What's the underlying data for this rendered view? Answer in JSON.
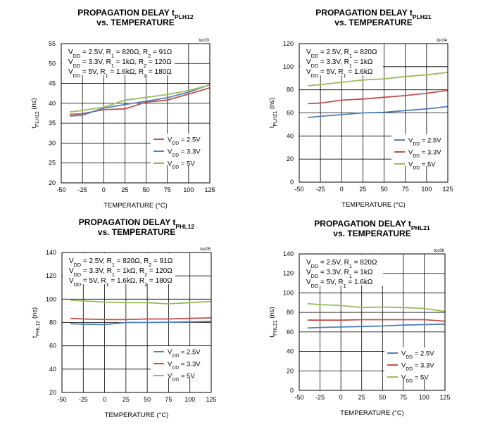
{
  "chart_data": [
    {
      "type": "line",
      "title": "PROPAGATION DELAY t",
      "title_sub": "PLH12",
      "title_line2": "vs. TEMPERATURE",
      "code": "toc03",
      "xlabel": "TEMPERATURE (°C)",
      "ylabel": "t",
      "ylabel_sub": "PLH12",
      "ylabel_unit": " (ns)",
      "xlim": [
        -50,
        125
      ],
      "ylim": [
        20,
        55
      ],
      "xticks": [
        -50,
        -25,
        0,
        25,
        50,
        75,
        100,
        125
      ],
      "yticks": [
        20,
        25,
        30,
        35,
        40,
        45,
        50,
        55
      ],
      "grid": true,
      "legend_position": "bottom-right",
      "conditions": [
        "V_DD_ = 2.5V, R_1 = 820Ω, R_2 = 91Ω",
        "V_DD_ = 3.3V, R_1 = 1kΩ, R_2 = 120Ω",
        "V_DD_ = 5V, R_1 = 1.6kΩ, R_2 = 180Ω"
      ],
      "series": [
        {
          "name": "V_DD_ = 2.5V",
          "color": "#c0504d",
          "x": [
            -40,
            -25,
            0,
            25,
            50,
            75,
            100,
            125
          ],
          "y": [
            37.2,
            37.4,
            38.4,
            38.6,
            40.3,
            40.8,
            42.3,
            43.9
          ]
        },
        {
          "name": "V_DD_ = 3.3V",
          "color": "#4f81bd",
          "x": [
            -40,
            -25,
            0,
            25,
            50,
            75,
            100,
            125
          ],
          "y": [
            36.8,
            37.0,
            38.8,
            39.7,
            40.5,
            41.4,
            42.8,
            44.7
          ]
        },
        {
          "name": "V_DD_ = 5V",
          "color": "#9bbb59",
          "x": [
            -40,
            -25,
            0,
            25,
            50,
            75,
            100,
            125
          ],
          "y": [
            37.8,
            38.2,
            39.0,
            40.8,
            41.5,
            42.2,
            43.2,
            44.6
          ]
        }
      ]
    },
    {
      "type": "line",
      "title": "PROPAGATION DELAY t",
      "title_sub": "PLH21",
      "title_line2": "vs. TEMPERATURE",
      "code": "toc04",
      "xlabel": "TEMPERATURE (°C)",
      "ylabel": "t",
      "ylabel_sub": "PLH21",
      "ylabel_unit": " (ns)",
      "xlim": [
        -50,
        125
      ],
      "ylim": [
        0,
        120
      ],
      "xticks": [
        -50,
        -25,
        0,
        25,
        50,
        75,
        100,
        125
      ],
      "yticks": [
        0,
        20,
        40,
        60,
        80,
        100,
        120
      ],
      "grid": true,
      "legend_position": "bottom-right",
      "conditions": [
        "V_DD_ = 2.5V, R_1 = 820Ω",
        "V_DD_ = 3.3V, R_1 = 1kΩ",
        "V_DD_ = 5V, R_1 = 1.6kΩ"
      ],
      "series": [
        {
          "name": "V_DD_ = 2.5V",
          "color": "#4f81bd",
          "x": [
            -40,
            -25,
            0,
            25,
            50,
            75,
            100,
            125
          ],
          "y": [
            56,
            57,
            58.5,
            60,
            60.5,
            62,
            63.5,
            65.5
          ]
        },
        {
          "name": "V_DD_ = 3.3V",
          "color": "#c0504d",
          "x": [
            -40,
            -25,
            0,
            25,
            50,
            75,
            100,
            125
          ],
          "y": [
            68,
            68.5,
            71,
            72,
            73.5,
            75,
            77,
            79.5
          ]
        },
        {
          "name": "V_DD_ = 5V",
          "color": "#9bbb59",
          "x": [
            -40,
            -25,
            0,
            25,
            50,
            75,
            100,
            125
          ],
          "y": [
            83.5,
            84.5,
            86.5,
            88.5,
            89.5,
            91.5,
            93,
            95
          ]
        }
      ]
    },
    {
      "type": "line",
      "title": "PROPAGATION DELAY t",
      "title_sub": "PHL12",
      "title_line2": "vs. TEMPERATURE",
      "code": "toc05",
      "xlabel": "TEMPERATURE (°C)",
      "ylabel": "t",
      "ylabel_sub": "PHL12",
      "ylabel_unit": " (ns)",
      "xlim": [
        -50,
        125
      ],
      "ylim": [
        20,
        140
      ],
      "xticks": [
        -50,
        -25,
        0,
        25,
        50,
        75,
        100,
        125
      ],
      "yticks": [
        20,
        40,
        60,
        80,
        100,
        120,
        140
      ],
      "grid": true,
      "legend_position": "bottom-right",
      "conditions": [
        "V_DD_ = 2.5V, R_1 = 820Ω, R_2 = 91Ω",
        "V_DD_ = 3.3V, R_1 = 1kΩ, R_2 = 120Ω",
        "V_DD_ = 5V, R_1 = 1.6kΩ, R_2 = 180Ω"
      ],
      "series": [
        {
          "name": "V_DD_ = 2.5V",
          "color": "#4f81bd",
          "x": [
            -40,
            -25,
            0,
            25,
            50,
            75,
            100,
            125
          ],
          "y": [
            79,
            78.5,
            78.2,
            80,
            80,
            80.2,
            80.5,
            81
          ]
        },
        {
          "name": "V_DD_ = 3.3V",
          "color": "#c0504d",
          "x": [
            -40,
            -25,
            0,
            25,
            50,
            75,
            100,
            125
          ],
          "y": [
            83.5,
            83,
            82.5,
            82.5,
            83,
            83,
            83.5,
            84
          ]
        },
        {
          "name": "V_DD_ = 5V",
          "color": "#9bbb59",
          "x": [
            -40,
            -25,
            0,
            25,
            50,
            75,
            100,
            125
          ],
          "y": [
            99,
            98.5,
            97.5,
            97,
            97,
            96,
            97,
            98
          ]
        }
      ]
    },
    {
      "type": "line",
      "title": "PROPAGATION DELAY t",
      "title_sub": "PHL21",
      "title_line2": "vs. TEMPERATURE",
      "code": "toc06",
      "xlabel": "TEMPERATURE (°C)",
      "ylabel": "t",
      "ylabel_sub": "PHL21",
      "ylabel_unit": " (ns)",
      "xlim": [
        -50,
        125
      ],
      "ylim": [
        0,
        140
      ],
      "xticks": [
        -50,
        -25,
        0,
        25,
        50,
        75,
        100,
        125
      ],
      "yticks": [
        0,
        20,
        40,
        60,
        80,
        100,
        120,
        140
      ],
      "grid": true,
      "legend_position": "bottom-right",
      "conditions": [
        "V_DD_ = 2.5V, R_1 = 820Ω",
        "V_DD_ = 3.3V, R_1 = 1kΩ",
        "V_DD_ = 5V, R_1 = 1.6kΩ"
      ],
      "series": [
        {
          "name": "V_DD_ = 2.5V",
          "color": "#4f81bd",
          "x": [
            -40,
            -25,
            0,
            25,
            50,
            75,
            100,
            125
          ],
          "y": [
            64,
            64.5,
            65,
            65.5,
            66,
            67,
            67.5,
            68
          ]
        },
        {
          "name": "V_DD_ = 3.3V",
          "color": "#c0504d",
          "x": [
            -40,
            -25,
            0,
            25,
            50,
            75,
            100,
            125
          ],
          "y": [
            72,
            72,
            72,
            72.5,
            72.5,
            72.5,
            72.5,
            71
          ]
        },
        {
          "name": "V_DD_ = 5V",
          "color": "#9bbb59",
          "x": [
            -40,
            -25,
            0,
            25,
            50,
            75,
            100,
            125
          ],
          "y": [
            89,
            88,
            87,
            85,
            85.5,
            85,
            84,
            81
          ]
        }
      ]
    }
  ]
}
